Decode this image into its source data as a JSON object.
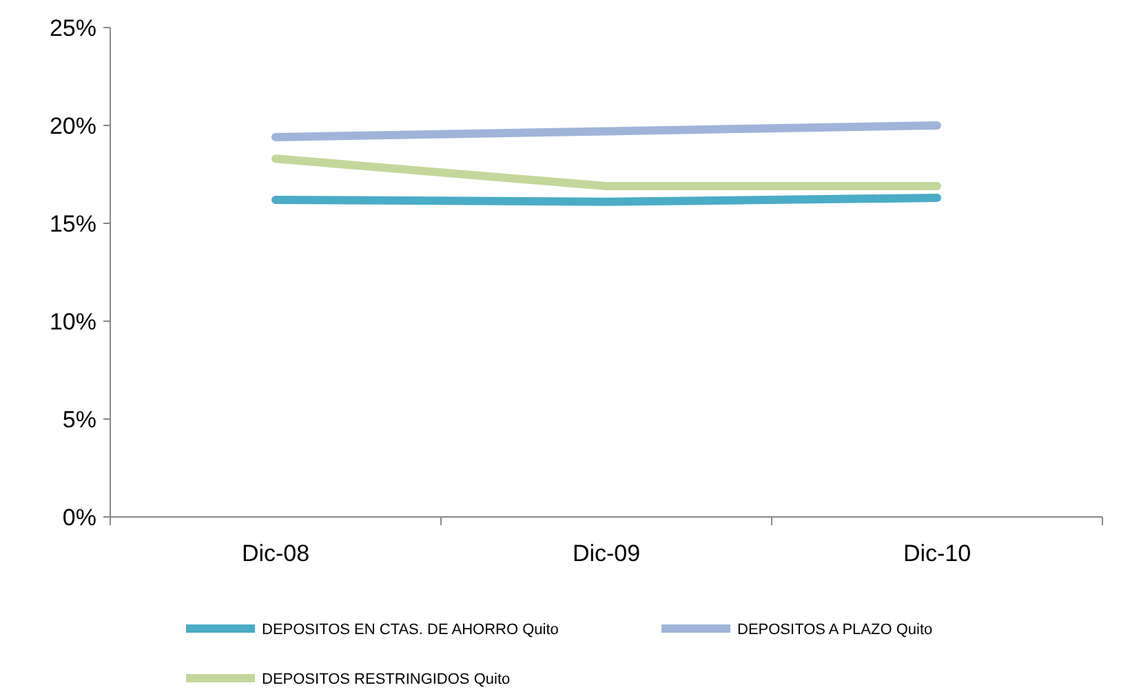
{
  "chart_data": {
    "type": "line",
    "categories": [
      "Dic-08",
      "Dic-09",
      "Dic-10"
    ],
    "series": [
      {
        "name": "DEPOSITOS EN CTAS. DE AHORRO Quito",
        "color": "#4bacc6",
        "values": [
          16.2,
          16.1,
          16.3
        ]
      },
      {
        "name": "DEPOSITOS A PLAZO Quito",
        "color": "#9fb4d8",
        "values": [
          19.4,
          19.7,
          20.0
        ]
      },
      {
        "name": "DEPOSITOS RESTRINGIDOS Quito",
        "color": "#c4d79b",
        "values": [
          18.3,
          16.9,
          16.9
        ]
      }
    ],
    "ylim": [
      0,
      25
    ],
    "yticks": [
      {
        "value": 0,
        "label": "0%"
      },
      {
        "value": 5,
        "label": "5%"
      },
      {
        "value": 10,
        "label": "10%"
      },
      {
        "value": 15,
        "label": "15%"
      },
      {
        "value": 20,
        "label": "20%"
      },
      {
        "value": 25,
        "label": "25%"
      }
    ],
    "grid": false,
    "legend": "bottom",
    "marker": "none",
    "line_style": "solid"
  }
}
